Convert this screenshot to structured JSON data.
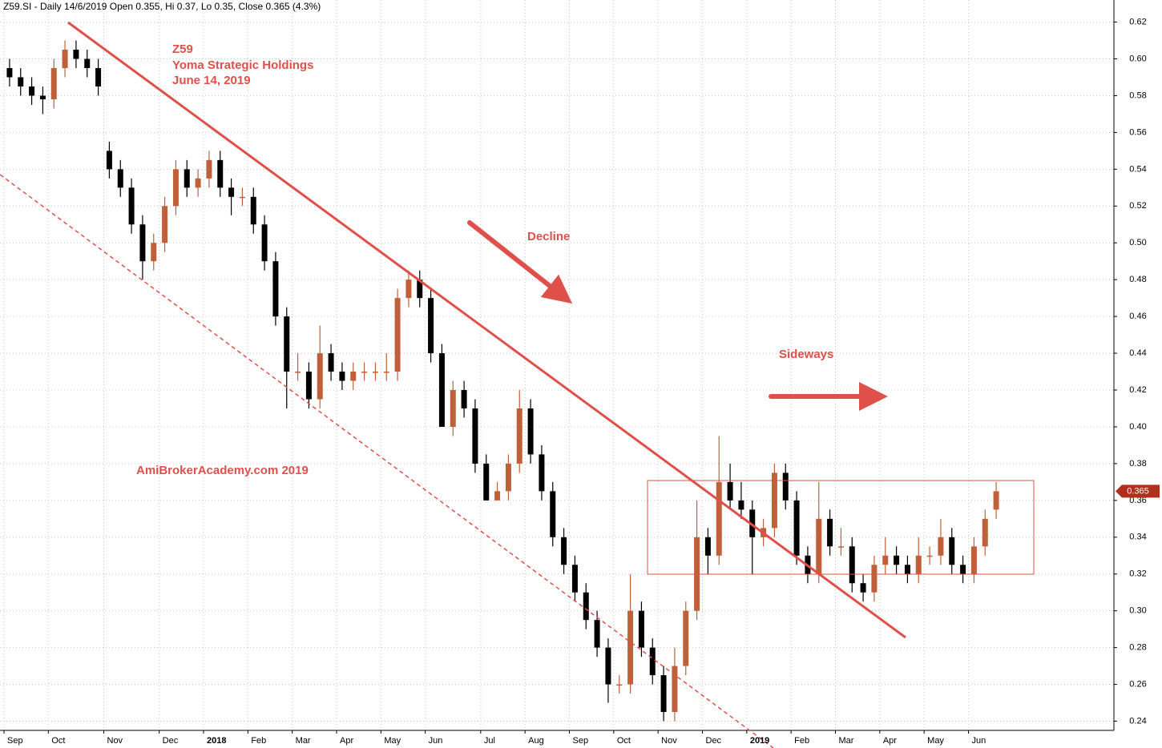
{
  "chart_data": {
    "type": "candlestick",
    "title": "Z59.SI - Daily 14/6/2019 Open 0.355, Hi 0.37, Lo 0.35, Close 0.365 (4.3%)",
    "annotations": {
      "symbol": "Z59",
      "company": "Yoma Strategic Holdings",
      "date": "June 14, 2019",
      "decline": "Decline",
      "sideways": "Sideways",
      "watermark": "AmiBrokerAcademy.com  2019"
    },
    "categories": [
      "Sep",
      null,
      null,
      null,
      "Oct",
      null,
      null,
      null,
      null,
      "Nov",
      null,
      null,
      null,
      null,
      "Dec",
      null,
      null,
      null,
      "2018",
      null,
      null,
      null,
      "Feb",
      null,
      null,
      null,
      "Mar",
      null,
      null,
      null,
      "Apr",
      null,
      null,
      null,
      "May",
      null,
      null,
      null,
      "Jun",
      null,
      null,
      null,
      null,
      "Jul",
      null,
      null,
      null,
      "Aug",
      null,
      null,
      null,
      "Sep",
      null,
      null,
      null,
      "Oct",
      null,
      null,
      null,
      "Nov",
      null,
      null,
      null,
      "Dec",
      null,
      null,
      null,
      "2019",
      null,
      null,
      null,
      "Feb",
      null,
      null,
      null,
      "Mar",
      null,
      null,
      null,
      "Apr",
      null,
      null,
      null,
      "May",
      null,
      null,
      null,
      "Jun",
      null,
      null
    ],
    "open": [
      0.595,
      0.59,
      0.585,
      0.58,
      0.578,
      0.595,
      0.605,
      0.6,
      0.595,
      0.55,
      0.54,
      0.53,
      0.51,
      0.49,
      0.5,
      0.52,
      0.54,
      0.53,
      0.535,
      0.545,
      0.53,
      0.525,
      0.525,
      0.51,
      0.49,
      0.46,
      0.43,
      0.43,
      0.415,
      0.44,
      0.43,
      0.425,
      0.43,
      0.43,
      0.43,
      0.43,
      0.47,
      0.48,
      0.47,
      0.44,
      0.4,
      0.42,
      0.41,
      0.38,
      0.36,
      0.365,
      0.38,
      0.41,
      0.385,
      0.365,
      0.34,
      0.325,
      0.31,
      0.295,
      0.28,
      0.26,
      0.26,
      0.3,
      0.28,
      0.265,
      0.245,
      0.27,
      0.3,
      0.34,
      0.33,
      0.37,
      0.36,
      0.355,
      0.34,
      0.345,
      0.375,
      0.36,
      0.33,
      0.32,
      0.35,
      0.335,
      0.335,
      0.315,
      0.31,
      0.325,
      0.33,
      0.325,
      0.32,
      0.33,
      0.33,
      0.34,
      0.325,
      0.32,
      0.335,
      0.355
    ],
    "high": [
      0.6,
      0.595,
      0.59,
      0.585,
      0.6,
      0.61,
      0.61,
      0.605,
      0.6,
      0.555,
      0.545,
      0.535,
      0.515,
      0.505,
      0.525,
      0.545,
      0.545,
      0.54,
      0.55,
      0.55,
      0.535,
      0.53,
      0.53,
      0.515,
      0.495,
      0.465,
      0.44,
      0.435,
      0.455,
      0.445,
      0.435,
      0.435,
      0.435,
      0.435,
      0.44,
      0.475,
      0.485,
      0.485,
      0.475,
      0.445,
      0.425,
      0.425,
      0.415,
      0.385,
      0.37,
      0.385,
      0.42,
      0.415,
      0.39,
      0.37,
      0.345,
      0.33,
      0.315,
      0.3,
      0.285,
      0.265,
      0.32,
      0.305,
      0.285,
      0.27,
      0.28,
      0.305,
      0.36,
      0.345,
      0.395,
      0.38,
      0.37,
      0.36,
      0.35,
      0.38,
      0.38,
      0.365,
      0.335,
      0.37,
      0.355,
      0.345,
      0.34,
      0.32,
      0.33,
      0.34,
      0.335,
      0.33,
      0.34,
      0.335,
      0.35,
      0.345,
      0.33,
      0.34,
      0.355,
      0.37
    ],
    "low": [
      0.585,
      0.58,
      0.575,
      0.57,
      0.573,
      0.59,
      0.595,
      0.59,
      0.58,
      0.535,
      0.525,
      0.505,
      0.48,
      0.485,
      0.495,
      0.515,
      0.525,
      0.525,
      0.53,
      0.525,
      0.515,
      0.52,
      0.505,
      0.485,
      0.455,
      0.41,
      0.425,
      0.41,
      0.41,
      0.425,
      0.42,
      0.42,
      0.425,
      0.425,
      0.425,
      0.425,
      0.465,
      0.465,
      0.435,
      0.4,
      0.395,
      0.405,
      0.375,
      0.36,
      0.36,
      0.36,
      0.375,
      0.38,
      0.36,
      0.335,
      0.32,
      0.305,
      0.29,
      0.275,
      0.25,
      0.255,
      0.255,
      0.275,
      0.26,
      0.24,
      0.24,
      0.265,
      0.295,
      0.32,
      0.325,
      0.355,
      0.35,
      0.32,
      0.335,
      0.34,
      0.355,
      0.325,
      0.315,
      0.315,
      0.33,
      0.33,
      0.31,
      0.305,
      0.305,
      0.32,
      0.32,
      0.315,
      0.315,
      0.325,
      0.325,
      0.32,
      0.315,
      0.315,
      0.33,
      0.35
    ],
    "close": [
      0.59,
      0.585,
      0.58,
      0.578,
      0.595,
      0.605,
      0.6,
      0.595,
      0.585,
      0.54,
      0.53,
      0.51,
      0.49,
      0.5,
      0.52,
      0.54,
      0.53,
      0.535,
      0.545,
      0.53,
      0.525,
      0.525,
      0.51,
      0.49,
      0.46,
      0.43,
      0.43,
      0.415,
      0.44,
      0.43,
      0.425,
      0.43,
      0.43,
      0.43,
      0.43,
      0.47,
      0.48,
      0.47,
      0.44,
      0.4,
      0.42,
      0.41,
      0.38,
      0.36,
      0.365,
      0.38,
      0.41,
      0.385,
      0.365,
      0.34,
      0.325,
      0.31,
      0.295,
      0.28,
      0.26,
      0.26,
      0.3,
      0.28,
      0.265,
      0.245,
      0.27,
      0.3,
      0.34,
      0.33,
      0.37,
      0.36,
      0.355,
      0.34,
      0.345,
      0.375,
      0.36,
      0.33,
      0.32,
      0.35,
      0.335,
      0.335,
      0.315,
      0.31,
      0.325,
      0.33,
      0.325,
      0.32,
      0.33,
      0.33,
      0.34,
      0.325,
      0.32,
      0.335,
      0.35,
      0.365
    ],
    "up_color": "#c0603a",
    "down_color": "#000000",
    "ylim": [
      0.235,
      0.632
    ],
    "yticks": [
      0.24,
      0.26,
      0.28,
      {
        "value": 0.3,
        "label": "0.30"
      },
      0.32,
      0.34,
      0.36,
      0.38,
      {
        "value": 0.4,
        "label": "0.40"
      },
      0.42,
      0.44,
      0.46,
      0.48,
      {
        "value": 0.5,
        "label": "0.50"
      },
      0.52,
      0.54,
      0.56,
      0.58,
      {
        "value": 0.6,
        "label": "0.60"
      },
      0.62
    ],
    "grid": true
  }
}
